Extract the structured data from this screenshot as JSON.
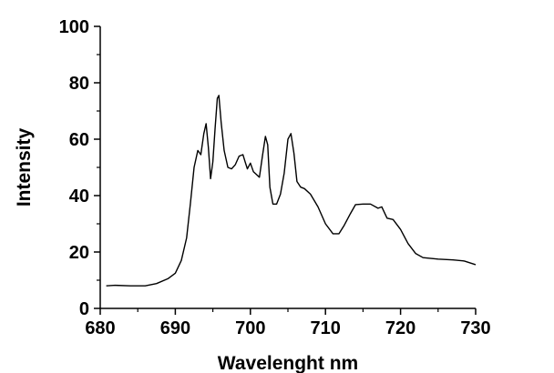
{
  "chart_data": {
    "type": "line",
    "title": "",
    "xlabel": "Wavelenght nm",
    "ylabel": "Intensity",
    "xlim": [
      680,
      730
    ],
    "ylim": [
      0,
      100
    ],
    "xticks": [
      680,
      690,
      700,
      710,
      720,
      730
    ],
    "yticks": [
      0,
      20,
      40,
      60,
      80,
      100
    ],
    "grid": false,
    "legend": "none",
    "series": [
      {
        "color": "#000000",
        "x": [
          680.8,
          682,
          684,
          686,
          687.5,
          689,
          690,
          690.8,
          691.5,
          692,
          692.5,
          693,
          693.4,
          693.8,
          694.1,
          694.4,
          694.7,
          695,
          695.3,
          695.6,
          695.8,
          696.1,
          696.5,
          697,
          697.5,
          698,
          698.5,
          699,
          699.3,
          699.6,
          700,
          700.4,
          700.8,
          701.2,
          701.6,
          702,
          702.3,
          702.6,
          703,
          703.5,
          704,
          704.5,
          705,
          705.4,
          705.8,
          706.2,
          706.7,
          707.2,
          708,
          709,
          710,
          711,
          711.8,
          712.5,
          713.3,
          714,
          715,
          716,
          717,
          717.5,
          718.2,
          719,
          720,
          721,
          722,
          723,
          725,
          727,
          728.5,
          730
        ],
        "values": [
          8.0,
          8.2,
          8.0,
          8.0,
          8.8,
          10.5,
          12.5,
          17.0,
          25.0,
          37.0,
          50.0,
          56.0,
          54.5,
          62.0,
          65.5,
          57.0,
          46.0,
          52.0,
          64.0,
          74.5,
          75.5,
          66.0,
          56.0,
          50.0,
          49.5,
          51.0,
          54.0,
          54.5,
          52.0,
          49.5,
          51.5,
          48.5,
          47.5,
          46.5,
          54.0,
          61.0,
          58.0,
          43.0,
          37.0,
          37.0,
          40.5,
          48.0,
          60.0,
          62.0,
          55.0,
          45.0,
          43.0,
          42.5,
          40.5,
          36.0,
          30.0,
          26.5,
          26.5,
          29.5,
          33.5,
          36.8,
          37.0,
          37.0,
          35.5,
          36.0,
          32.0,
          31.5,
          28.0,
          23.0,
          19.5,
          18.0,
          17.5,
          17.2,
          16.8,
          15.5
        ]
      }
    ]
  }
}
